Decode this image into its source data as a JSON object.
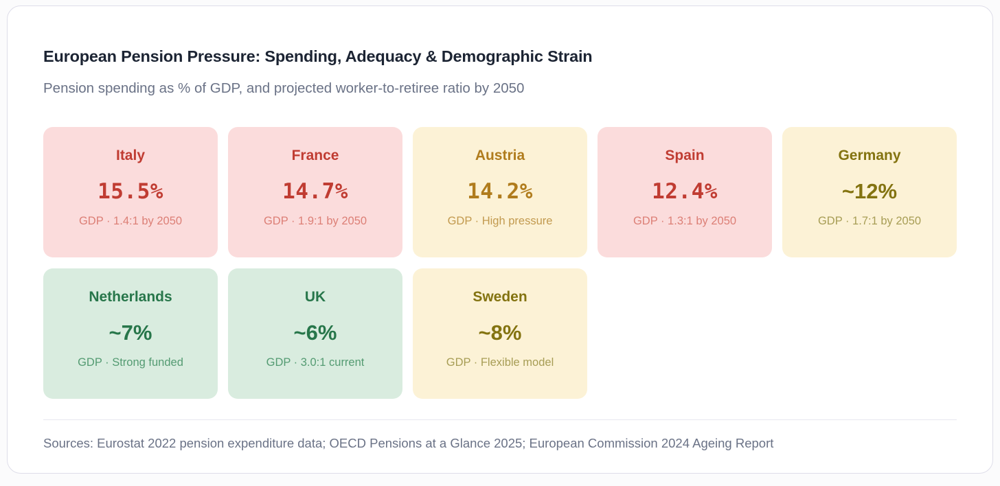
{
  "header": {
    "title": "European Pension Pressure: Spending, Adequacy & Demographic Strain",
    "subtitle": "Pension spending as % of GDP, and projected worker-to-retiree ratio by 2050"
  },
  "cards": [
    {
      "country": "Italy",
      "value": "15.5%",
      "value_style": "mono",
      "detail": "GDP · 1.4:1 by 2050",
      "scheme": "red"
    },
    {
      "country": "France",
      "value": "14.7%",
      "value_style": "mono",
      "detail": "GDP · 1.9:1 by 2050",
      "scheme": "red"
    },
    {
      "country": "Austria",
      "value": "14.2%",
      "value_style": "mono",
      "detail": "GDP · High pressure",
      "scheme": "amber"
    },
    {
      "country": "Spain",
      "value": "12.4%",
      "value_style": "mono",
      "detail": "GDP · 1.3:1 by 2050",
      "scheme": "red"
    },
    {
      "country": "Germany",
      "value": "~12%",
      "value_style": "approx",
      "detail": "GDP · 1.7:1 by 2050",
      "scheme": "olive"
    },
    {
      "country": "Netherlands",
      "value": "~7%",
      "value_style": "approx",
      "detail": "GDP · Strong funded",
      "scheme": "green"
    },
    {
      "country": "UK",
      "value": "~6%",
      "value_style": "approx",
      "detail": "GDP · 3.0:1 current",
      "scheme": "green"
    },
    {
      "country": "Sweden",
      "value": "~8%",
      "value_style": "approx",
      "detail": "GDP · Flexible model",
      "scheme": "olive"
    }
  ],
  "footer": {
    "sources": "Sources: Eurostat 2022 pension expenditure data; OECD Pensions at a Glance 2025; European Commission 2024 Ageing Report"
  },
  "colors": {
    "red_bg": "#fbdcdc",
    "red_text": "#c03c32",
    "red_detail": "#dc7f76",
    "amber_bg": "#fcf2d6",
    "amber_text": "#b07c1d",
    "amber_detail": "#c29a4f",
    "olive_text": "#837310",
    "olive_detail": "#a79d55",
    "green_bg": "#d9ecdf",
    "green_text": "#27764a",
    "green_detail": "#549b72"
  }
}
